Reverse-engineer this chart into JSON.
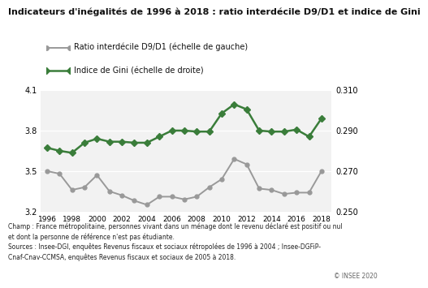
{
  "title": "Indicateurs d'inégalités de 1996 à 2018 : ratio interdécile D9/D1 et indice de Gini",
  "years": [
    1996,
    1997,
    1998,
    1999,
    2000,
    2001,
    2002,
    2003,
    2004,
    2005,
    2006,
    2007,
    2008,
    2009,
    2010,
    2011,
    2012,
    2013,
    2014,
    2015,
    2016,
    2017,
    2018
  ],
  "d9d1": [
    3.5,
    3.48,
    3.36,
    3.38,
    3.47,
    3.35,
    3.32,
    3.28,
    3.25,
    3.31,
    3.31,
    3.29,
    3.31,
    3.38,
    3.44,
    3.59,
    3.55,
    3.37,
    3.36,
    3.33,
    3.34,
    3.34,
    3.5
  ],
  "gini": [
    0.2815,
    0.28,
    0.279,
    0.284,
    0.286,
    0.2845,
    0.2845,
    0.284,
    0.284,
    0.287,
    0.29,
    0.29,
    0.2895,
    0.2895,
    0.2985,
    0.303,
    0.3005,
    0.29,
    0.2895,
    0.2895,
    0.2905,
    0.287,
    0.296
  ],
  "d9d1_color": "#999999",
  "gini_color": "#3a7d3a",
  "ylim_left": [
    3.2,
    4.1
  ],
  "ylim_right": [
    0.25,
    0.31
  ],
  "yticks_left": [
    3.2,
    3.5,
    3.8,
    4.1
  ],
  "yticks_right": [
    0.25,
    0.27,
    0.29,
    0.31
  ],
  "xlabel_years": [
    1996,
    1998,
    2000,
    2002,
    2004,
    2006,
    2008,
    2010,
    2012,
    2014,
    2016,
    2018
  ],
  "legend_d9d1": "Ratio interdécile D9/D1 (échelle de gauche)",
  "legend_gini": "Indice de Gini (échelle de droite)",
  "footnote": "Champ : France métropolitaine, personnes vivant dans un ménage dont le revenu déclaré est positif ou nul\net dont la personne de référence n'est pas étudiante.\nSources : Insee-DGI, enquêtes Revenus fiscaux et sociaux rétropolées de 1996 à 2004 ; Insee-DGFiP-\nCnaf-Cnav-CCMSA, enquêtes Revenus fiscaux et sociaux de 2005 à 2018.",
  "copyright": "© INSEE 2020",
  "bg_color": "#ffffff",
  "plot_bg_color": "#f2f2f2"
}
